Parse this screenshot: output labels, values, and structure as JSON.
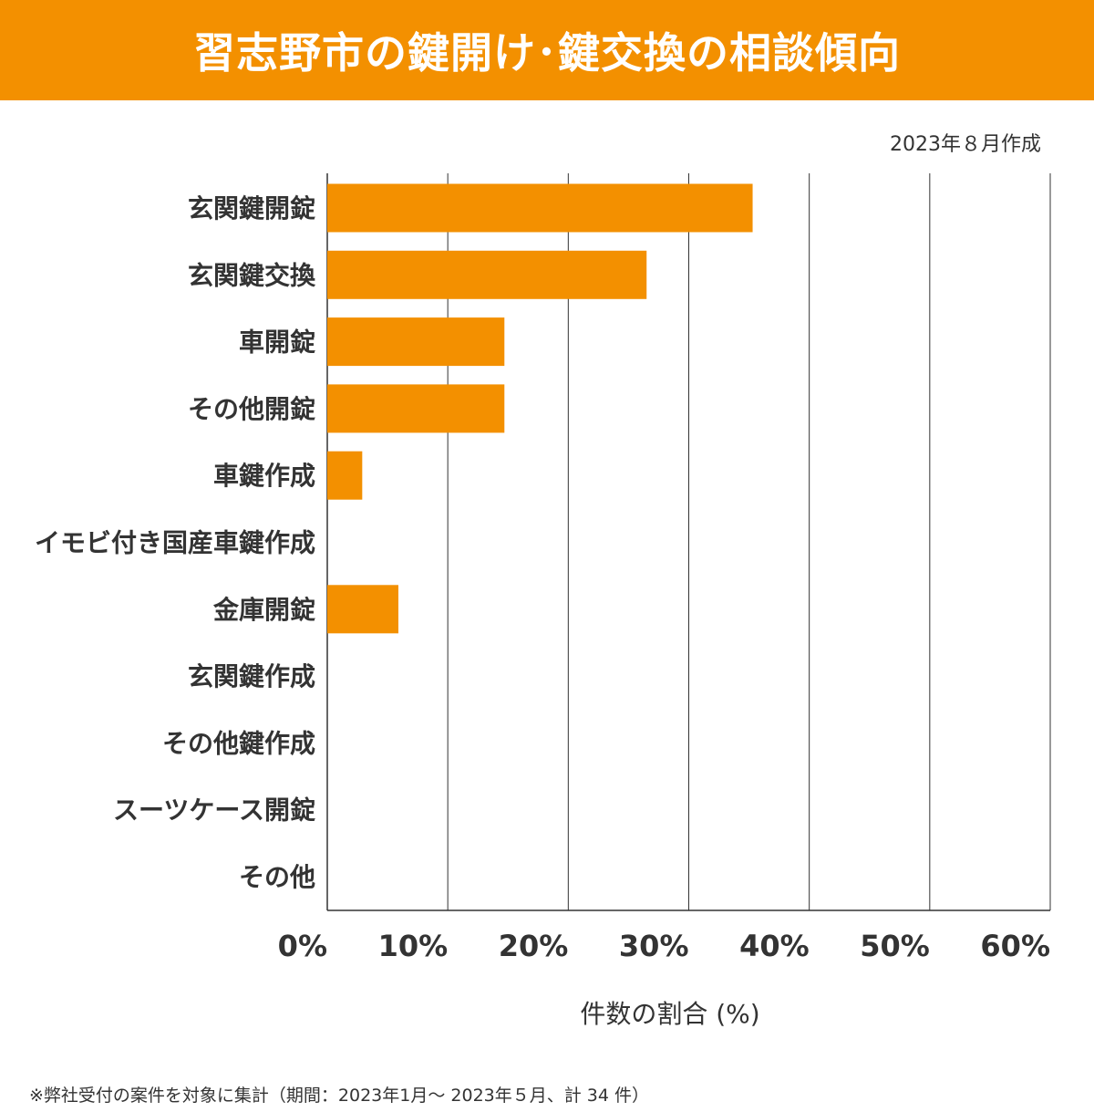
{
  "header": {
    "title": "習志野市の鍵開け･鍵交換の相談傾向",
    "bg_color": "#F39000"
  },
  "created": "2023年８月作成",
  "footnote": "※弊社受付の案件を対象に集計（期間：2023年1月～ 2023年５月、計 34 件）",
  "chart_data": {
    "type": "bar",
    "orientation": "horizontal",
    "categories": [
      "玄関鍵開錠",
      "玄関鍵交換",
      "車開錠",
      "その他開錠",
      "車鍵作成",
      "イモビ付き国産車鍵作成",
      "金庫開錠",
      "玄関鍵作成",
      "その他鍵作成",
      "スーツケース開錠",
      "その他"
    ],
    "values": [
      35.3,
      26.5,
      14.7,
      14.7,
      2.9,
      0,
      5.9,
      0,
      0,
      0,
      0
    ],
    "xlim": [
      0,
      60
    ],
    "xticks": [
      0,
      10,
      20,
      30,
      40,
      50,
      60
    ],
    "xtick_labels": [
      "0%",
      "10%",
      "20%",
      "30%",
      "40%",
      "50%",
      "60%"
    ],
    "xlabel": "件数の割合 (%)",
    "ylabel": "",
    "grid": true,
    "bar_color": "#F39000"
  }
}
